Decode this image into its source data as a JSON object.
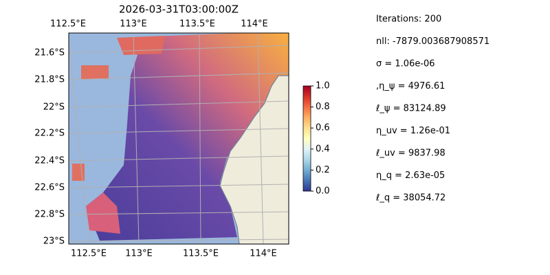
{
  "map": {
    "title": "2026-03-31T03:00:00Z",
    "lon_ticks_top": [
      "112.5°E",
      "113°E",
      "113.5°E",
      "114°E"
    ],
    "lon_ticks_bottom": [
      "112.5°E",
      "113°E",
      "113.5°E",
      "114°E"
    ],
    "lat_ticks": [
      "21.6°S",
      "21.8°S",
      "22°S",
      "22.2°S",
      "22.4°S",
      "22.6°S",
      "22.8°S",
      "23°S"
    ]
  },
  "colorbar": {
    "lim": [
      0,
      1
    ],
    "ticks": [
      {
        "value": 0,
        "label": "0.0"
      },
      {
        "value": 0.2,
        "label": "0.2"
      },
      {
        "value": 0.4,
        "label": "0.4"
      },
      {
        "value": 0.6,
        "label": "0.6"
      },
      {
        "value": 0.8,
        "label": "0.8"
      },
      {
        "value": 1,
        "label": "1.0"
      }
    ]
  },
  "info": [
    "Iterations: 200",
    "nll: -7879.003687908571",
    "σ = 1.06e-06",
    ",η_ψ = 4976.61",
    "ℓ_ψ = 83124.89",
    "η_uv = 1.26e-01",
    "ℓ_uv = 9837.98",
    "η_q = 2.63e-05",
    "ℓ_q = 38054.72"
  ]
}
